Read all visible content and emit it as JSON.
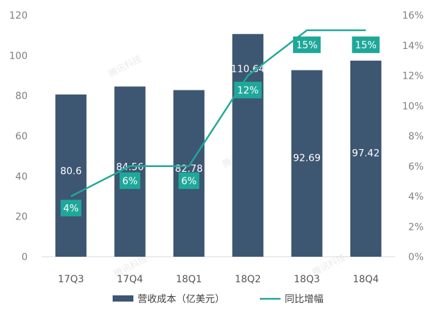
{
  "chart_data": {
    "type": "bar",
    "categories": [
      "17Q3",
      "17Q4",
      "18Q1",
      "18Q2",
      "18Q3",
      "18Q4"
    ],
    "series": [
      {
        "name": "营收成本（亿美元）",
        "type": "bar",
        "axis": "left",
        "values": [
          80.6,
          84.56,
          82.78,
          110.64,
          92.69,
          97.42
        ],
        "labels": [
          "80.6",
          "84.56",
          "82.78",
          "110.64",
          "92.69",
          "97.42"
        ]
      },
      {
        "name": "同比增幅",
        "type": "line",
        "axis": "right",
        "values": [
          4,
          6,
          6,
          12,
          15,
          15
        ],
        "labels": [
          "4%",
          "6%",
          "6%",
          "12%",
          "15%",
          "15%"
        ]
      }
    ],
    "left_axis": {
      "ylim": [
        0,
        120
      ],
      "ticks": [
        0,
        20,
        40,
        60,
        80,
        100,
        120
      ],
      "tick_labels": [
        "0",
        "20",
        "40",
        "60",
        "80",
        "100",
        "120"
      ]
    },
    "right_axis": {
      "ylim": [
        0,
        16
      ],
      "ticks": [
        0,
        2,
        4,
        6,
        8,
        10,
        12,
        14,
        16
      ],
      "tick_labels": [
        "0%",
        "2%",
        "4%",
        "6%",
        "8%",
        "10%",
        "12%",
        "14%",
        "16%"
      ]
    },
    "legend": [
      "营收成本（亿美元）",
      "同比增幅"
    ],
    "legend_position": "bottom",
    "grid": false,
    "colors": {
      "bar": "#3d5672",
      "line": "#1fa89a",
      "label_box": "#1fa89a",
      "axis": "#d9d9d9",
      "tick": "#808080"
    },
    "watermark": "腾讯科技"
  }
}
